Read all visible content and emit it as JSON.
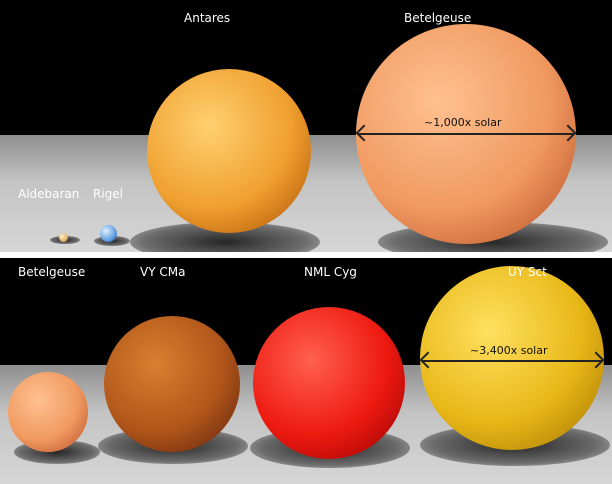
{
  "top_panel": {
    "stars": [
      {
        "name": "Aldebaran",
        "color": "#e8c080"
      },
      {
        "name": "Rigel",
        "color": "#6fa8e8"
      },
      {
        "name": "Antares",
        "color": "#f0a030"
      },
      {
        "name": "Betelgeuse",
        "color": "#f09a60"
      }
    ],
    "size_label": "~1,000x solar"
  },
  "bottom_panel": {
    "stars": [
      {
        "name": "Betelgeuse",
        "color": "#f09a60"
      },
      {
        "name": "VY CMa",
        "color": "#b0561a"
      },
      {
        "name": "NML Cyg",
        "color": "#ee1a10"
      },
      {
        "name": "UY Sct",
        "color": "#e8b818"
      }
    ],
    "size_label": "~3,400x solar"
  }
}
